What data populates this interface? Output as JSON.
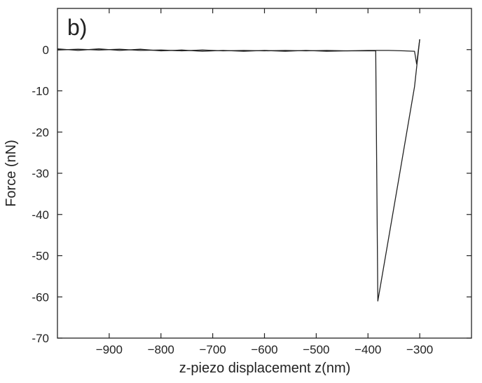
{
  "chart_data": {
    "type": "line",
    "title": "",
    "panel_label": "b)",
    "xlabel": "z-piezo displacement z(nm)",
    "ylabel": "Force (nN)",
    "xlim": [
      -1000,
      -200
    ],
    "ylim": [
      -70,
      10
    ],
    "x_ticks": [
      -900,
      -800,
      -700,
      -600,
      -500,
      -400,
      -300
    ],
    "x_tick_labels": [
      "−900",
      "−800",
      "−700",
      "−600",
      "−500",
      "−400",
      "−300"
    ],
    "y_ticks": [
      0,
      -10,
      -20,
      -30,
      -40,
      -50,
      -60,
      -70
    ],
    "y_tick_labels": [
      "0",
      "-10",
      "-20",
      "-30",
      "-40",
      "-50",
      "-60",
      "-70"
    ],
    "grid": false,
    "series": [
      {
        "values": [
          [
            -1000,
            -0.1
          ],
          [
            -960,
            0.1
          ],
          [
            -920,
            -0.1
          ],
          [
            -880,
            0.1
          ],
          [
            -840,
            -0.2
          ],
          [
            -800,
            -0.1
          ],
          [
            -760,
            -0.3
          ],
          [
            -720,
            -0.1
          ],
          [
            -680,
            -0.3
          ],
          [
            -640,
            -0.2
          ],
          [
            -600,
            -0.3
          ],
          [
            -560,
            -0.2
          ],
          [
            -520,
            -0.3
          ],
          [
            -480,
            -0.2
          ],
          [
            -440,
            -0.3
          ],
          [
            -400,
            -0.2
          ],
          [
            -360,
            -0.2
          ],
          [
            -330,
            -0.3
          ],
          [
            -310,
            -0.4
          ],
          [
            -306,
            -3.5
          ],
          [
            -300,
            2.5
          ]
        ]
      },
      {
        "values": [
          [
            -1000,
            0.2
          ],
          [
            -960,
            -0.2
          ],
          [
            -920,
            0.2
          ],
          [
            -880,
            -0.2
          ],
          [
            -840,
            0.1
          ],
          [
            -800,
            -0.3
          ],
          [
            -760,
            -0.1
          ],
          [
            -720,
            -0.4
          ],
          [
            -680,
            -0.2
          ],
          [
            -640,
            -0.4
          ],
          [
            -600,
            -0.2
          ],
          [
            -560,
            -0.4
          ],
          [
            -520,
            -0.2
          ],
          [
            -480,
            -0.4
          ],
          [
            -440,
            -0.3
          ],
          [
            -400,
            -0.3
          ],
          [
            -385,
            -0.3
          ],
          [
            -381,
            -61
          ],
          [
            -340,
            -31
          ],
          [
            -310,
            -9
          ],
          [
            -300,
            2.5
          ]
        ]
      }
    ]
  }
}
